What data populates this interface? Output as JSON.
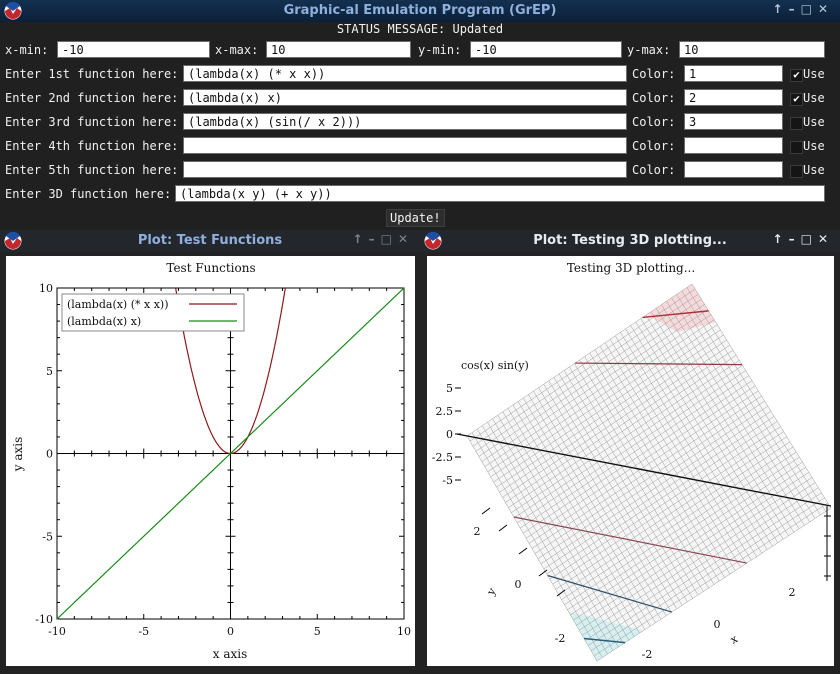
{
  "main_window": {
    "title": "Graphic-al Emulation Program (GrEP)",
    "status": "STATUS MESSAGE: Updated"
  },
  "range": {
    "xmin_label": "x-min:",
    "xmin": "-10",
    "xmax_label": "x-max:",
    "xmax": "10",
    "ymin_label": "y-min:",
    "ymin": "-10",
    "ymax_label": "y-max:",
    "ymax": "10"
  },
  "functions": [
    {
      "label": "Enter 1st function here:",
      "value": "(lambda(x) (* x x))",
      "color_label": "Color:",
      "color": "1",
      "use_label": "Use",
      "checked": true
    },
    {
      "label": "Enter 2nd function here:",
      "value": "(lambda(x) x)",
      "color_label": "Color:",
      "color": "2",
      "use_label": "Use",
      "checked": true
    },
    {
      "label": "Enter 3rd function here:",
      "value": "(lambda(x) (sin(/ x 2)))",
      "color_label": "Color:",
      "color": "3",
      "use_label": "Use",
      "checked": false
    },
    {
      "label": "Enter 4th function here:",
      "value": "",
      "color_label": "Color:",
      "color": "",
      "use_label": "Use",
      "checked": false
    },
    {
      "label": "Enter 5th function here:",
      "value": "",
      "color_label": "Color:",
      "color": "",
      "use_label": "Use",
      "checked": false
    }
  ],
  "fn3d": {
    "label": "Enter 3D function here:",
    "value": "(lambda(x y) (+ x y))"
  },
  "update_button": "Update!",
  "plot2d_window": {
    "title": "Plot: Test Functions"
  },
  "plot3d_window": {
    "title": "Plot: Testing 3D plotting..."
  },
  "chart_data": [
    {
      "type": "line",
      "title": "Test Functions",
      "xlabel": "x axis",
      "ylabel": "y axis",
      "xlim": [
        -10,
        10
      ],
      "ylim": [
        -10,
        10
      ],
      "x_ticks": [
        "-10",
        "-5",
        "0",
        "5",
        "10"
      ],
      "y_ticks": [
        "10",
        "5",
        "0",
        "-5",
        "-10"
      ],
      "legend_position": "top-left",
      "series": [
        {
          "name": "(lambda(x) (* x x))",
          "color": "#8b1a1a",
          "function": "x*x"
        },
        {
          "name": "(lambda(x) x)",
          "color": "#1a8b1a",
          "function": "x"
        }
      ]
    },
    {
      "type": "surface",
      "title": "Testing 3D plotting...",
      "zlabel": "cos(x) sin(y)",
      "z_ticks": [
        "5",
        "2.5",
        "0",
        "-2.5",
        "-5"
      ],
      "x_ticks": [
        "0",
        "2"
      ],
      "y_ticks": [
        "-2",
        "0",
        "2"
      ],
      "xlabel": "x",
      "ylabel": "y",
      "x_tick_neg": "-2",
      "y_tick_neg": "-2"
    }
  ]
}
